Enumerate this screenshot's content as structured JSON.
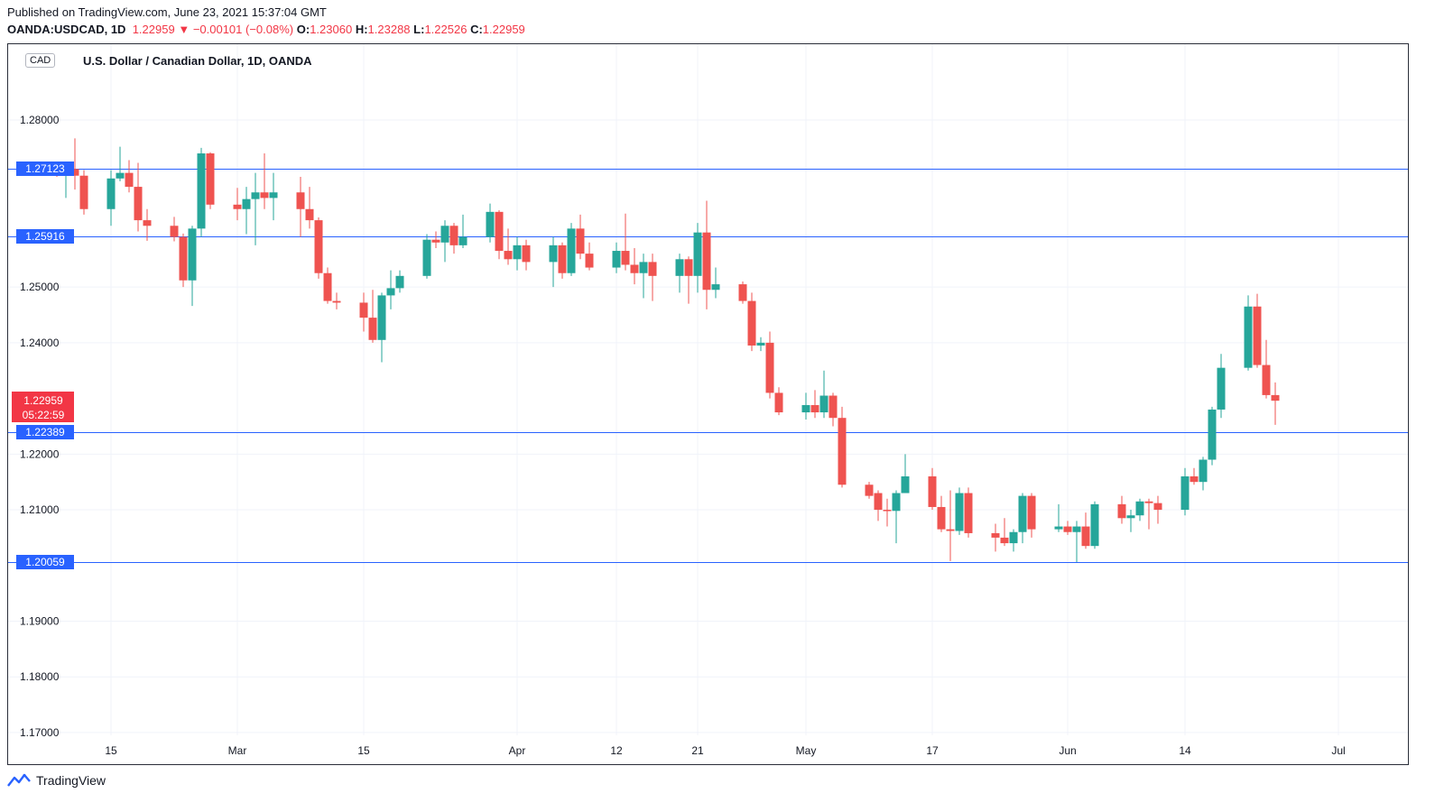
{
  "header": {
    "published": "Published on TradingView.com, June 23, 2021 15:37:04 GMT",
    "symbol": "OANDA:USDCAD, 1D",
    "last": "1.22959",
    "arrow": "▼",
    "change": "−0.00101 (−0.08%)",
    "o_label": "O:",
    "o_value": "1.23060",
    "h_label": "H:",
    "h_value": "1.23288",
    "l_label": "L:",
    "l_value": "1.22526",
    "c_label": "C:",
    "c_value": "1.22959"
  },
  "currency_tag": "CAD",
  "footer": {
    "brand": "TradingView"
  },
  "colors": {
    "up": "#26a69a",
    "down": "#ef5350",
    "level_line": "#2962ff",
    "level_tag_bg": "#2962ff",
    "price_tag_bg": "#f23645",
    "grid": "#f0f3fa"
  },
  "chart_data": {
    "type": "candlestick",
    "title": "U.S. Dollar / Canadian Dollar, 1D, OANDA",
    "ylim": [
      1.17,
      1.29
    ],
    "y_ticks": [
      "1.17000",
      "1.18000",
      "1.19000",
      "1.21000",
      "1.22000",
      "1.24000",
      "1.25000",
      "1.28000"
    ],
    "y_tick_values": [
      1.17,
      1.18,
      1.19,
      1.21,
      1.22,
      1.24,
      1.25,
      1.28
    ],
    "x_ticks": [
      {
        "label": "15",
        "date": "2021-02-15"
      },
      {
        "label": "Mar",
        "date": "2021-03-01"
      },
      {
        "label": "15",
        "date": "2021-03-15"
      },
      {
        "label": "Apr",
        "date": "2021-04-01"
      },
      {
        "label": "12",
        "date": "2021-04-12"
      },
      {
        "label": "21",
        "date": "2021-04-21"
      },
      {
        "label": "May",
        "date": "2021-05-03"
      },
      {
        "label": "17",
        "date": "2021-05-17"
      },
      {
        "label": "Jun",
        "date": "2021-06-01"
      },
      {
        "label": "14",
        "date": "2021-06-14"
      },
      {
        "label": "Jul",
        "date": "2021-07-01"
      }
    ],
    "horizontal_levels": [
      {
        "label": "1.27123",
        "value": 1.27123
      },
      {
        "label": "1.25916",
        "value": 1.25916
      },
      {
        "label": "1.22389",
        "value": 1.22389
      },
      {
        "label": "1.20059",
        "value": 1.20059
      }
    ],
    "last_price": {
      "value": 1.22959,
      "label": "1.22959",
      "countdown": "05:22:59"
    },
    "candles": [
      {
        "date": "2021-02-09",
        "o": 1.2705,
        "h": 1.2712,
        "l": 1.2698,
        "c": 1.27
      },
      {
        "date": "2021-02-10",
        "o": 1.2705,
        "h": 1.2718,
        "l": 1.266,
        "c": 1.2712
      },
      {
        "date": "2021-02-11",
        "o": 1.2712,
        "h": 1.2767,
        "l": 1.2675,
        "c": 1.27
      },
      {
        "date": "2021-02-12",
        "o": 1.27,
        "h": 1.271,
        "l": 1.263,
        "c": 1.264
      },
      {
        "date": "2021-02-15",
        "o": 1.264,
        "h": 1.271,
        "l": 1.261,
        "c": 1.2695
      },
      {
        "date": "2021-02-16",
        "o": 1.2695,
        "h": 1.2752,
        "l": 1.269,
        "c": 1.2705
      },
      {
        "date": "2021-02-17",
        "o": 1.2705,
        "h": 1.2728,
        "l": 1.267,
        "c": 1.268
      },
      {
        "date": "2021-02-18",
        "o": 1.268,
        "h": 1.2723,
        "l": 1.26,
        "c": 1.262
      },
      {
        "date": "2021-02-19",
        "o": 1.262,
        "h": 1.264,
        "l": 1.2583,
        "c": 1.261
      },
      {
        "date": "2021-02-22",
        "o": 1.261,
        "h": 1.2626,
        "l": 1.2582,
        "c": 1.259
      },
      {
        "date": "2021-02-23",
        "o": 1.259,
        "h": 1.2596,
        "l": 1.25,
        "c": 1.2512
      },
      {
        "date": "2021-02-24",
        "o": 1.2512,
        "h": 1.261,
        "l": 1.2466,
        "c": 1.2605
      },
      {
        "date": "2021-02-25",
        "o": 1.2605,
        "h": 1.275,
        "l": 1.259,
        "c": 1.274
      },
      {
        "date": "2021-02-26",
        "o": 1.274,
        "h": 1.2742,
        "l": 1.264,
        "c": 1.2648
      },
      {
        "date": "2021-03-01",
        "o": 1.2648,
        "h": 1.2678,
        "l": 1.262,
        "c": 1.264
      },
      {
        "date": "2021-03-02",
        "o": 1.264,
        "h": 1.268,
        "l": 1.2595,
        "c": 1.2658
      },
      {
        "date": "2021-03-03",
        "o": 1.2658,
        "h": 1.2705,
        "l": 1.2575,
        "c": 1.267
      },
      {
        "date": "2021-03-04",
        "o": 1.267,
        "h": 1.274,
        "l": 1.264,
        "c": 1.266
      },
      {
        "date": "2021-03-05",
        "o": 1.266,
        "h": 1.2705,
        "l": 1.262,
        "c": 1.267
      },
      {
        "date": "2021-03-08",
        "o": 1.267,
        "h": 1.2698,
        "l": 1.259,
        "c": 1.264
      },
      {
        "date": "2021-03-09",
        "o": 1.264,
        "h": 1.268,
        "l": 1.2605,
        "c": 1.262
      },
      {
        "date": "2021-03-10",
        "o": 1.262,
        "h": 1.2625,
        "l": 1.2515,
        "c": 1.2525
      },
      {
        "date": "2021-03-11",
        "o": 1.2525,
        "h": 1.2535,
        "l": 1.247,
        "c": 1.2475
      },
      {
        "date": "2021-03-12",
        "o": 1.2475,
        "h": 1.249,
        "l": 1.246,
        "c": 1.2472
      },
      {
        "date": "2021-03-15",
        "o": 1.2472,
        "h": 1.249,
        "l": 1.242,
        "c": 1.2445
      },
      {
        "date": "2021-03-16",
        "o": 1.2445,
        "h": 1.2495,
        "l": 1.24,
        "c": 1.2405
      },
      {
        "date": "2021-03-17",
        "o": 1.2405,
        "h": 1.249,
        "l": 1.2365,
        "c": 1.2485
      },
      {
        "date": "2021-03-18",
        "o": 1.2485,
        "h": 1.253,
        "l": 1.246,
        "c": 1.2498
      },
      {
        "date": "2021-03-19",
        "o": 1.2498,
        "h": 1.253,
        "l": 1.249,
        "c": 1.252
      },
      {
        "date": "2021-03-22",
        "o": 1.252,
        "h": 1.2595,
        "l": 1.2515,
        "c": 1.2585
      },
      {
        "date": "2021-03-23",
        "o": 1.2585,
        "h": 1.26,
        "l": 1.257,
        "c": 1.258
      },
      {
        "date": "2021-03-24",
        "o": 1.258,
        "h": 1.262,
        "l": 1.2545,
        "c": 1.261
      },
      {
        "date": "2021-03-25",
        "o": 1.261,
        "h": 1.2615,
        "l": 1.256,
        "c": 1.2575
      },
      {
        "date": "2021-03-26",
        "o": 1.2575,
        "h": 1.263,
        "l": 1.257,
        "c": 1.259
      },
      {
        "date": "2021-03-29",
        "o": 1.259,
        "h": 1.265,
        "l": 1.258,
        "c": 1.2635
      },
      {
        "date": "2021-03-30",
        "o": 1.2635,
        "h": 1.2638,
        "l": 1.255,
        "c": 1.2565
      },
      {
        "date": "2021-03-31",
        "o": 1.2565,
        "h": 1.2605,
        "l": 1.254,
        "c": 1.255
      },
      {
        "date": "2021-04-01",
        "o": 1.255,
        "h": 1.259,
        "l": 1.253,
        "c": 1.2575
      },
      {
        "date": "2021-04-02",
        "o": 1.2575,
        "h": 1.2585,
        "l": 1.253,
        "c": 1.2545
      },
      {
        "date": "2021-04-05",
        "o": 1.2545,
        "h": 1.259,
        "l": 1.25,
        "c": 1.2575
      },
      {
        "date": "2021-04-06",
        "o": 1.2575,
        "h": 1.258,
        "l": 1.2515,
        "c": 1.2525
      },
      {
        "date": "2021-04-07",
        "o": 1.2525,
        "h": 1.2615,
        "l": 1.252,
        "c": 1.2605
      },
      {
        "date": "2021-04-08",
        "o": 1.2605,
        "h": 1.263,
        "l": 1.255,
        "c": 1.256
      },
      {
        "date": "2021-04-09",
        "o": 1.256,
        "h": 1.258,
        "l": 1.253,
        "c": 1.2535
      },
      {
        "date": "2021-04-12",
        "o": 1.2535,
        "h": 1.258,
        "l": 1.2525,
        "c": 1.2565
      },
      {
        "date": "2021-04-13",
        "o": 1.2565,
        "h": 1.2632,
        "l": 1.253,
        "c": 1.254
      },
      {
        "date": "2021-04-14",
        "o": 1.254,
        "h": 1.257,
        "l": 1.2505,
        "c": 1.2525
      },
      {
        "date": "2021-04-15",
        "o": 1.2525,
        "h": 1.256,
        "l": 1.248,
        "c": 1.2545
      },
      {
        "date": "2021-04-16",
        "o": 1.2545,
        "h": 1.256,
        "l": 1.2475,
        "c": 1.252
      },
      {
        "date": "2021-04-19",
        "o": 1.252,
        "h": 1.256,
        "l": 1.249,
        "c": 1.255
      },
      {
        "date": "2021-04-20",
        "o": 1.255,
        "h": 1.2555,
        "l": 1.247,
        "c": 1.252
      },
      {
        "date": "2021-04-21",
        "o": 1.252,
        "h": 1.2615,
        "l": 1.249,
        "c": 1.2598
      },
      {
        "date": "2021-04-22",
        "o": 1.2598,
        "h": 1.2655,
        "l": 1.246,
        "c": 1.2495
      },
      {
        "date": "2021-04-23",
        "o": 1.2495,
        "h": 1.2535,
        "l": 1.248,
        "c": 1.2505
      },
      {
        "date": "2021-04-26",
        "o": 1.2505,
        "h": 1.251,
        "l": 1.247,
        "c": 1.2475
      },
      {
        "date": "2021-04-27",
        "o": 1.2475,
        "h": 1.249,
        "l": 1.2385,
        "c": 1.2395
      },
      {
        "date": "2021-04-28",
        "o": 1.2395,
        "h": 1.241,
        "l": 1.2385,
        "c": 1.24
      },
      {
        "date": "2021-04-29",
        "o": 1.24,
        "h": 1.242,
        "l": 1.23,
        "c": 1.231
      },
      {
        "date": "2021-04-30",
        "o": 1.231,
        "h": 1.232,
        "l": 1.227,
        "c": 1.2275
      },
      {
        "date": "2021-05-03",
        "o": 1.2275,
        "h": 1.231,
        "l": 1.2262,
        "c": 1.2288
      },
      {
        "date": "2021-05-04",
        "o": 1.2288,
        "h": 1.2315,
        "l": 1.2265,
        "c": 1.2275
      },
      {
        "date": "2021-05-05",
        "o": 1.2275,
        "h": 1.235,
        "l": 1.2265,
        "c": 1.2305
      },
      {
        "date": "2021-05-06",
        "o": 1.2305,
        "h": 1.231,
        "l": 1.225,
        "c": 1.2265
      },
      {
        "date": "2021-05-07",
        "o": 1.2265,
        "h": 1.2285,
        "l": 1.214,
        "c": 1.2145
      },
      {
        "date": "2021-05-10",
        "o": 1.2145,
        "h": 1.215,
        "l": 1.212,
        "c": 1.2125
      },
      {
        "date": "2021-05-11",
        "o": 1.213,
        "h": 1.2135,
        "l": 1.208,
        "c": 1.21
      },
      {
        "date": "2021-05-12",
        "o": 1.21,
        "h": 1.212,
        "l": 1.207,
        "c": 1.2098
      },
      {
        "date": "2021-05-13",
        "o": 1.2098,
        "h": 1.2135,
        "l": 1.204,
        "c": 1.213
      },
      {
        "date": "2021-05-14",
        "o": 1.213,
        "h": 1.22,
        "l": 1.213,
        "c": 1.216
      },
      {
        "date": "2021-05-17",
        "o": 1.216,
        "h": 1.2175,
        "l": 1.21,
        "c": 1.2105
      },
      {
        "date": "2021-05-18",
        "o": 1.2105,
        "h": 1.2125,
        "l": 1.206,
        "c": 1.2065
      },
      {
        "date": "2021-05-19",
        "o": 1.2065,
        "h": 1.2135,
        "l": 1.2008,
        "c": 1.2062
      },
      {
        "date": "2021-05-20",
        "o": 1.2062,
        "h": 1.214,
        "l": 1.2055,
        "c": 1.213
      },
      {
        "date": "2021-05-21",
        "o": 1.213,
        "h": 1.214,
        "l": 1.205,
        "c": 1.2058
      },
      {
        "date": "2021-05-24",
        "o": 1.2058,
        "h": 1.2075,
        "l": 1.2025,
        "c": 1.205
      },
      {
        "date": "2021-05-25",
        "o": 1.205,
        "h": 1.2085,
        "l": 1.2035,
        "c": 1.204
      },
      {
        "date": "2021-05-26",
        "o": 1.204,
        "h": 1.2065,
        "l": 1.2025,
        "c": 1.206
      },
      {
        "date": "2021-05-27",
        "o": 1.206,
        "h": 1.213,
        "l": 1.204,
        "c": 1.2125
      },
      {
        "date": "2021-05-28",
        "o": 1.2125,
        "h": 1.213,
        "l": 1.205,
        "c": 1.2065
      },
      {
        "date": "2021-05-31",
        "o": 1.2065,
        "h": 1.211,
        "l": 1.206,
        "c": 1.207
      },
      {
        "date": "2021-06-01",
        "o": 1.207,
        "h": 1.208,
        "l": 1.2055,
        "c": 1.206
      },
      {
        "date": "2021-06-02",
        "o": 1.206,
        "h": 1.208,
        "l": 1.2006,
        "c": 1.207
      },
      {
        "date": "2021-06-03",
        "o": 1.207,
        "h": 1.2095,
        "l": 1.203,
        "c": 1.2035
      },
      {
        "date": "2021-06-04",
        "o": 1.2035,
        "h": 1.2115,
        "l": 1.203,
        "c": 1.211
      },
      {
        "date": "2021-06-07",
        "o": 1.211,
        "h": 1.2125,
        "l": 1.2075,
        "c": 1.2085
      },
      {
        "date": "2021-06-08",
        "o": 1.2085,
        "h": 1.21,
        "l": 1.206,
        "c": 1.209
      },
      {
        "date": "2021-06-09",
        "o": 1.209,
        "h": 1.212,
        "l": 1.208,
        "c": 1.2115
      },
      {
        "date": "2021-06-10",
        "o": 1.2115,
        "h": 1.212,
        "l": 1.2065,
        "c": 1.2112
      },
      {
        "date": "2021-06-11",
        "o": 1.2112,
        "h": 1.2125,
        "l": 1.2075,
        "c": 1.21
      },
      {
        "date": "2021-06-14",
        "o": 1.21,
        "h": 1.2175,
        "l": 1.209,
        "c": 1.216
      },
      {
        "date": "2021-06-15",
        "o": 1.216,
        "h": 1.2175,
        "l": 1.2145,
        "c": 1.215
      },
      {
        "date": "2021-06-16",
        "o": 1.215,
        "h": 1.2195,
        "l": 1.2135,
        "c": 1.219
      },
      {
        "date": "2021-06-17",
        "o": 1.219,
        "h": 1.2285,
        "l": 1.218,
        "c": 1.228
      },
      {
        "date": "2021-06-18",
        "o": 1.228,
        "h": 1.238,
        "l": 1.2265,
        "c": 1.2355
      },
      {
        "date": "2021-06-21",
        "o": 1.2355,
        "h": 1.2485,
        "l": 1.235,
        "c": 1.2465
      },
      {
        "date": "2021-06-22",
        "o": 1.2465,
        "h": 1.2488,
        "l": 1.2355,
        "c": 1.236
      },
      {
        "date": "2021-06-23",
        "o": 1.236,
        "h": 1.2405,
        "l": 1.23,
        "c": 1.2306
      },
      {
        "date": "2021-06-24",
        "o": 1.2306,
        "h": 1.23288,
        "l": 1.22526,
        "c": 1.22959
      }
    ]
  }
}
